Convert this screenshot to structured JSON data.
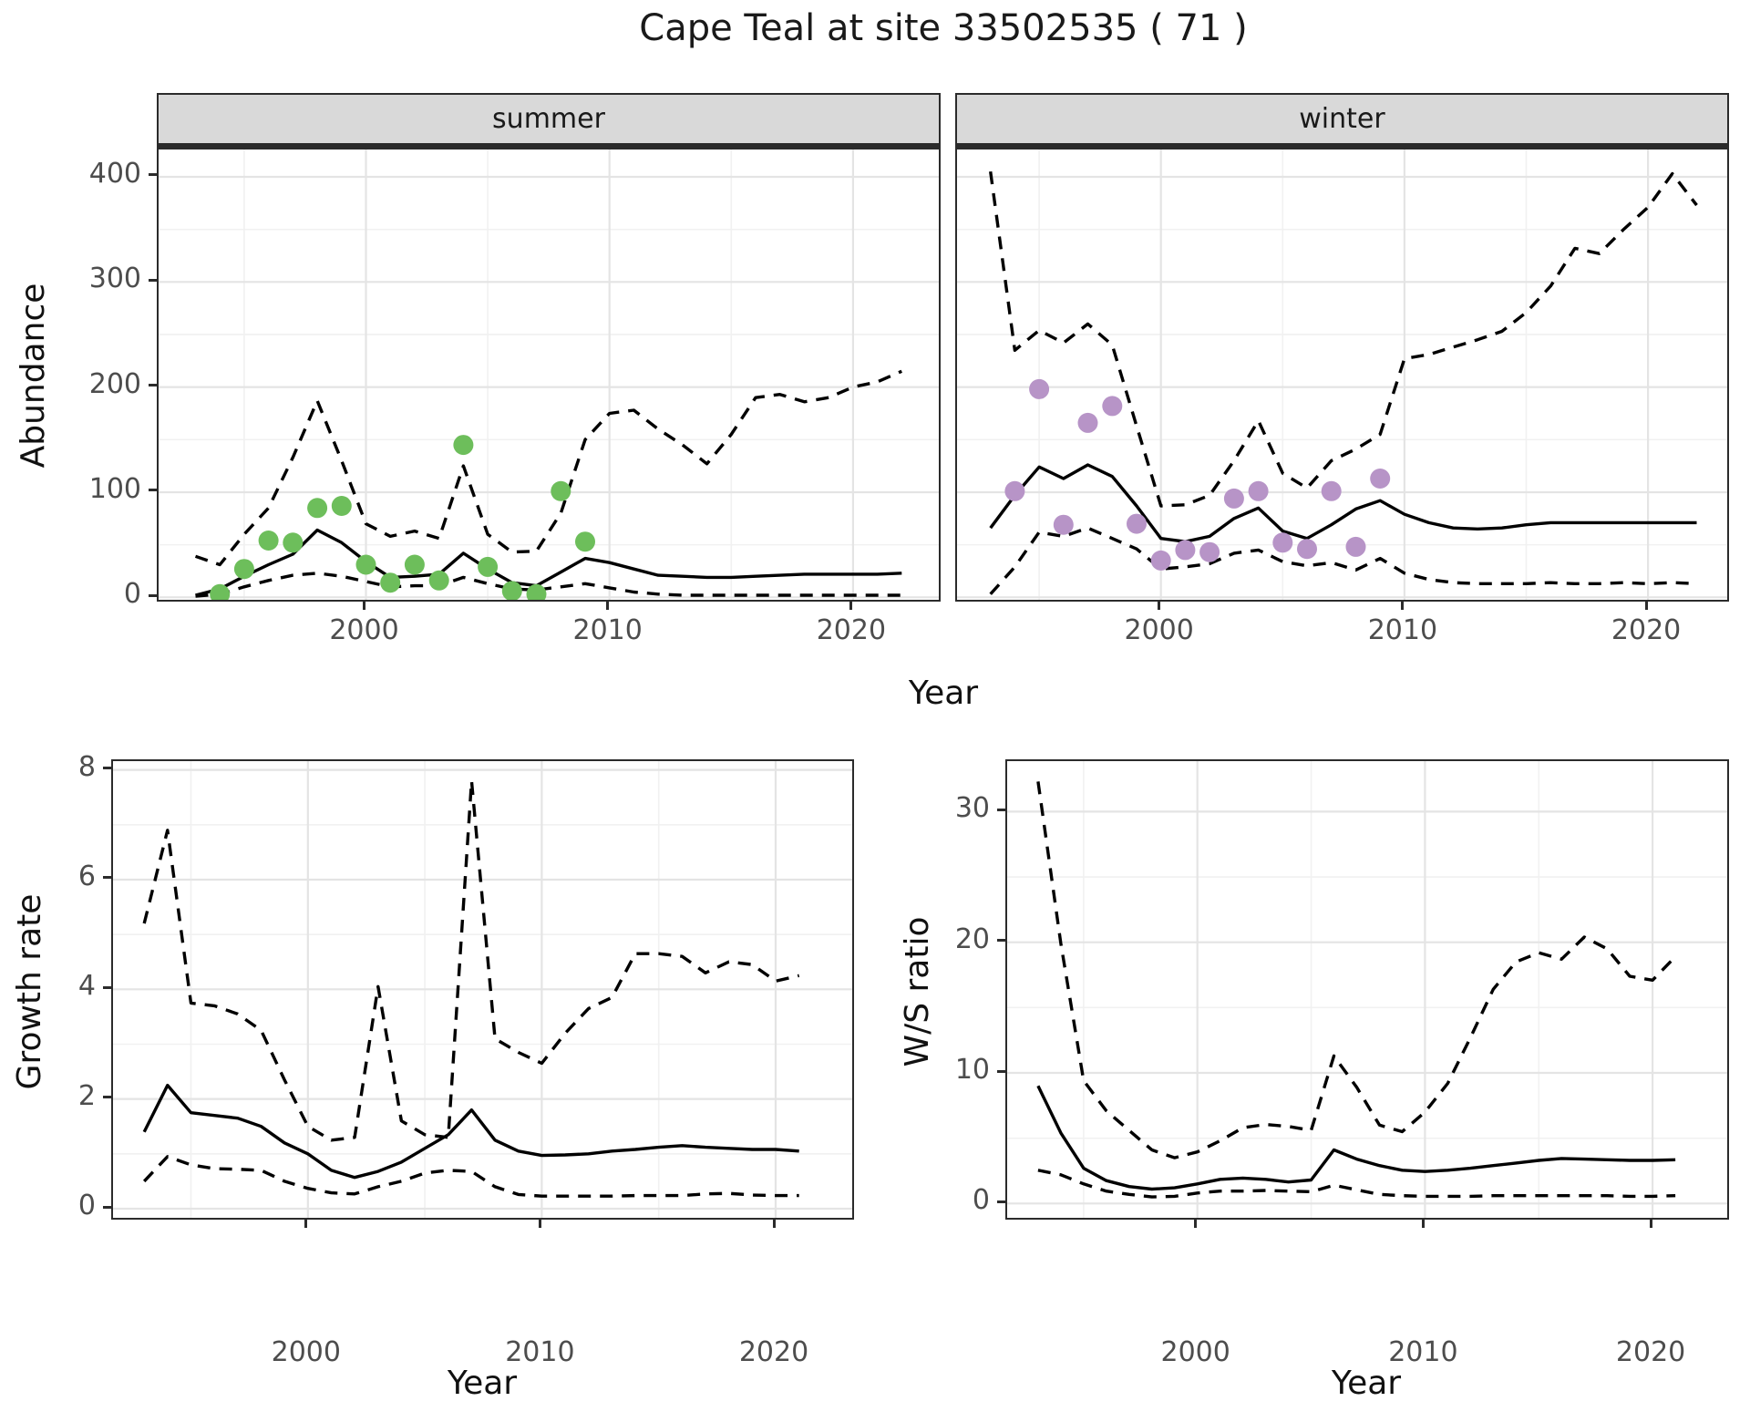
{
  "title": "Cape Teal at site 33502535 ( 71 )",
  "colors": {
    "summer_points": "#6DBE5B",
    "winter_points": "#B794C7",
    "line": "#000000",
    "grid_major": "#E4E4E4",
    "grid_minor": "#F1F1F1",
    "strip_bg": "#D9D9D9",
    "axis_text": "#4D4D4D",
    "panel_border": "#2B2B2B"
  },
  "chart_data": [
    {
      "id": "abundance-summer",
      "type": "line",
      "facet": "summer",
      "xlabel": "Year",
      "ylabel": "Abundance",
      "ylim": [
        0,
        425
      ],
      "yticks": [
        0,
        100,
        200,
        300,
        400
      ],
      "xticks": [
        2000,
        2010,
        2020
      ],
      "grid": true,
      "legend": "none",
      "x_years": [
        1993,
        1994,
        1995,
        1996,
        1997,
        1998,
        1999,
        2000,
        2001,
        2002,
        2003,
        2004,
        2005,
        2006,
        2007,
        2008,
        2009,
        2010,
        2011,
        2012,
        2013,
        2014,
        2015,
        2016,
        2017,
        2018,
        2019,
        2020,
        2021,
        2022
      ],
      "series": [
        {
          "name": "modelled-median",
          "style": "solid",
          "values": [
            2,
            8,
            20,
            31,
            41,
            64,
            52,
            34,
            19,
            20,
            22,
            42,
            27,
            14,
            11,
            24,
            37,
            33,
            27,
            21,
            20,
            19,
            19,
            20,
            21,
            22,
            22,
            22,
            22,
            23
          ]
        },
        {
          "name": "upper-ci",
          "style": "dashed",
          "values": [
            39,
            31,
            60,
            85,
            133,
            187,
            130,
            70,
            58,
            63,
            56,
            125,
            60,
            43,
            44,
            80,
            150,
            175,
            178,
            160,
            145,
            127,
            155,
            190,
            193,
            186,
            190,
            200,
            205,
            215
          ]
        },
        {
          "name": "lower-ci",
          "style": "dashed",
          "values": [
            1,
            3,
            10,
            16,
            21,
            23,
            20,
            15,
            10,
            11,
            11,
            19,
            13,
            8,
            7,
            10,
            13,
            9,
            5,
            3,
            2,
            2,
            2,
            2,
            2,
            2,
            2,
            2,
            2,
            2
          ]
        }
      ],
      "points": {
        "name": "observed-counts-summer",
        "color": "#6DBE5B",
        "x": [
          1994,
          1995,
          1996,
          1997,
          1998,
          1999,
          2000,
          2001,
          2002,
          2003,
          2004,
          2005,
          2006,
          2007,
          2008,
          2009
        ],
        "y": [
          3,
          27,
          54,
          52,
          85,
          87,
          31,
          14,
          31,
          16,
          145,
          29,
          6,
          3,
          101,
          53
        ]
      }
    },
    {
      "id": "abundance-winter",
      "type": "line",
      "facet": "winter",
      "xlabel": "Year",
      "ylabel": "Abundance",
      "ylim": [
        0,
        425
      ],
      "yticks": [
        0,
        100,
        200,
        300,
        400
      ],
      "xticks": [
        2000,
        2010,
        2020
      ],
      "grid": true,
      "legend": "none",
      "x_years": [
        1993,
        1994,
        1995,
        1996,
        1997,
        1998,
        1999,
        2000,
        2001,
        2002,
        2003,
        2004,
        2005,
        2006,
        2007,
        2008,
        2009,
        2010,
        2011,
        2012,
        2013,
        2014,
        2015,
        2016,
        2017,
        2018,
        2019,
        2020,
        2021,
        2022
      ],
      "series": [
        {
          "name": "modelled-median",
          "style": "solid",
          "values": [
            66,
            97,
            124,
            113,
            126,
            115,
            87,
            56,
            53,
            58,
            75,
            85,
            63,
            56,
            69,
            84,
            92,
            79,
            71,
            66,
            65,
            66,
            69,
            71,
            71,
            71,
            71,
            71,
            71,
            71
          ]
        },
        {
          "name": "upper-ci",
          "style": "dashed",
          "values": [
            405,
            235,
            254,
            242,
            260,
            240,
            163,
            87,
            88,
            97,
            130,
            168,
            118,
            104,
            130,
            141,
            155,
            227,
            231,
            238,
            245,
            253,
            271,
            296,
            332,
            327,
            350,
            371,
            403,
            373
          ]
        },
        {
          "name": "lower-ci",
          "style": "dashed",
          "values": [
            3,
            29,
            62,
            58,
            66,
            56,
            46,
            27,
            29,
            32,
            42,
            45,
            34,
            30,
            33,
            26,
            37,
            23,
            17,
            14,
            13,
            13,
            13,
            14,
            13,
            13,
            14,
            13,
            14,
            13
          ]
        }
      ],
      "points": {
        "name": "observed-counts-winter",
        "color": "#B794C7",
        "x": [
          1994,
          1995,
          1996,
          1997,
          1998,
          1999,
          2000,
          2001,
          2002,
          2003,
          2004,
          2005,
          2006,
          2007,
          2008,
          2009
        ],
        "y": [
          101,
          198,
          69,
          166,
          182,
          70,
          35,
          45,
          43,
          94,
          101,
          52,
          46,
          101,
          48,
          113
        ]
      }
    },
    {
      "id": "growth-rate",
      "type": "line",
      "facet": "",
      "xlabel": "Year",
      "ylabel": "Growth rate",
      "ylim": [
        0,
        8.2
      ],
      "yticks": [
        0,
        2,
        4,
        6,
        8
      ],
      "xticks": [
        2000,
        2010,
        2020
      ],
      "grid": true,
      "legend": "none",
      "x_years": [
        1993,
        1994,
        1995,
        1996,
        1997,
        1998,
        1999,
        2000,
        2001,
        2002,
        2003,
        2004,
        2005,
        2006,
        2007,
        2008,
        2009,
        2010,
        2011,
        2012,
        2013,
        2014,
        2015,
        2016,
        2017,
        2018,
        2019,
        2020,
        2021
      ],
      "series": [
        {
          "name": "growth-rate-median",
          "style": "solid",
          "values": [
            1.4,
            2.25,
            1.75,
            1.7,
            1.65,
            1.5,
            1.2,
            1.0,
            0.7,
            0.57,
            0.68,
            0.85,
            1.1,
            1.35,
            1.8,
            1.25,
            1.05,
            0.97,
            0.98,
            1.0,
            1.05,
            1.08,
            1.12,
            1.15,
            1.12,
            1.1,
            1.08,
            1.08,
            1.05
          ]
        },
        {
          "name": "upper-ci",
          "style": "dashed",
          "values": [
            5.2,
            6.9,
            3.75,
            3.7,
            3.55,
            3.25,
            2.35,
            1.5,
            1.25,
            1.3,
            4.05,
            1.6,
            1.35,
            1.3,
            7.8,
            3.1,
            2.85,
            2.65,
            3.2,
            3.65,
            3.85,
            4.65,
            4.65,
            4.6,
            4.3,
            4.5,
            4.45,
            4.15,
            4.25
          ]
        },
        {
          "name": "lower-ci",
          "style": "dashed",
          "values": [
            0.5,
            0.95,
            0.8,
            0.73,
            0.72,
            0.7,
            0.5,
            0.37,
            0.29,
            0.27,
            0.4,
            0.5,
            0.65,
            0.7,
            0.68,
            0.4,
            0.26,
            0.23,
            0.23,
            0.23,
            0.23,
            0.24,
            0.24,
            0.24,
            0.27,
            0.28,
            0.25,
            0.24,
            0.24
          ]
        }
      ],
      "points": null
    },
    {
      "id": "ws-ratio",
      "type": "line",
      "facet": "",
      "xlabel": "Year",
      "ylabel": "W/S ratio",
      "ylim": [
        0,
        33.8
      ],
      "yticks": [
        0,
        10,
        20,
        30
      ],
      "xticks": [
        2000,
        2010,
        2020
      ],
      "grid": true,
      "legend": "none",
      "x_years": [
        1993,
        1994,
        1995,
        1996,
        1997,
        1998,
        1999,
        2000,
        2001,
        2002,
        2003,
        2004,
        2005,
        2006,
        2007,
        2008,
        2009,
        2010,
        2011,
        2012,
        2013,
        2014,
        2015,
        2016,
        2017,
        2018,
        2019,
        2020,
        2021
      ],
      "series": [
        {
          "name": "ws-ratio-median",
          "style": "solid",
          "values": [
            9.0,
            5.4,
            2.7,
            1.75,
            1.3,
            1.1,
            1.2,
            1.5,
            1.85,
            1.95,
            1.85,
            1.65,
            1.8,
            4.1,
            3.4,
            2.9,
            2.55,
            2.45,
            2.55,
            2.7,
            2.9,
            3.1,
            3.3,
            3.45,
            3.4,
            3.35,
            3.3,
            3.3,
            3.35
          ]
        },
        {
          "name": "upper-ci",
          "style": "dashed",
          "values": [
            32.3,
            19.9,
            9.4,
            7.1,
            5.6,
            4.1,
            3.5,
            3.95,
            4.8,
            5.8,
            6.05,
            5.9,
            5.6,
            11.3,
            8.9,
            6.0,
            5.5,
            7.0,
            9.2,
            12.7,
            16.4,
            18.5,
            19.2,
            18.7,
            20.4,
            19.5,
            17.4,
            17.1,
            18.9
          ]
        },
        {
          "name": "lower-ci",
          "style": "dashed",
          "values": [
            2.55,
            2.2,
            1.5,
            0.95,
            0.7,
            0.5,
            0.55,
            0.8,
            0.95,
            0.95,
            1.0,
            0.95,
            0.9,
            1.4,
            1.05,
            0.7,
            0.6,
            0.55,
            0.55,
            0.55,
            0.6,
            0.6,
            0.6,
            0.6,
            0.6,
            0.6,
            0.55,
            0.55,
            0.6
          ]
        }
      ],
      "points": null
    }
  ]
}
